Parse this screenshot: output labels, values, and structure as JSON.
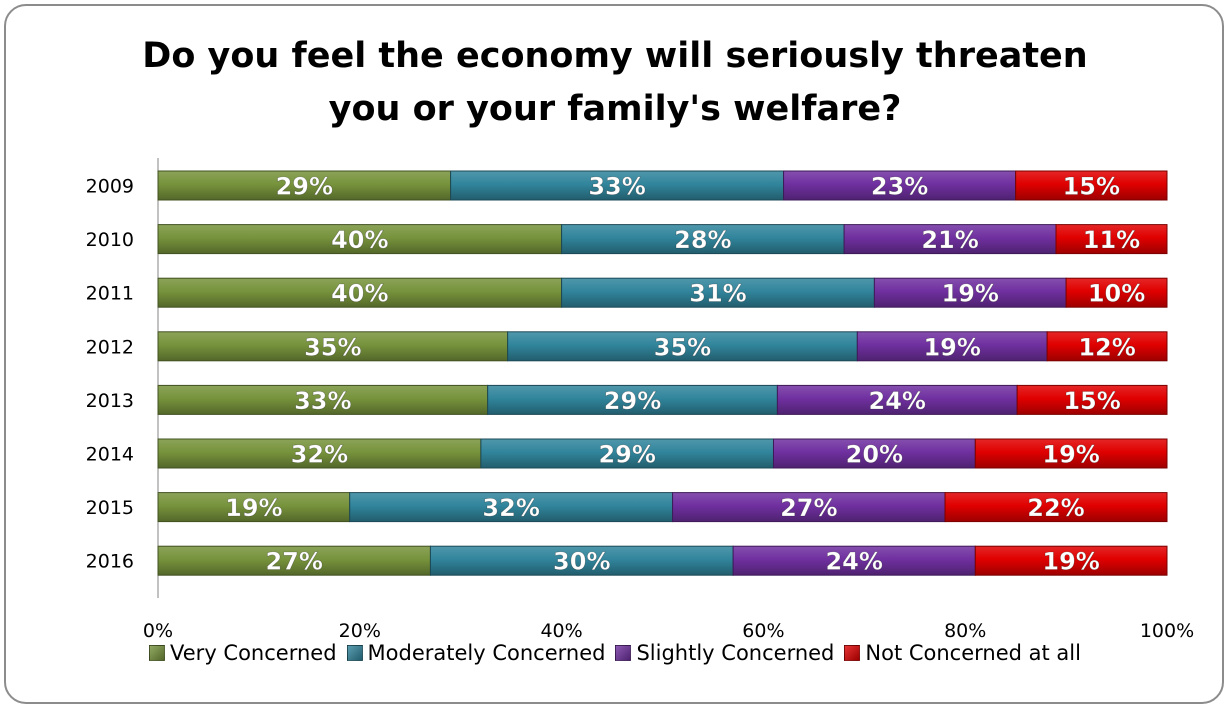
{
  "chart_data": {
    "type": "bar",
    "orientation": "horizontal",
    "stacked": "percent",
    "title": "Do you feel the economy will seriously threaten you or your family's welfare?",
    "title_lines": [
      "Do you feel the economy will seriously threaten",
      "you or your family's welfare?"
    ],
    "categories": [
      "2009",
      "2010",
      "2011",
      "2012",
      "2013",
      "2014",
      "2015",
      "2016"
    ],
    "series": [
      {
        "name": "Very Concerned",
        "color": "#77933c",
        "values": [
          29,
          40,
          40,
          35,
          33,
          32,
          19,
          27
        ],
        "labels": [
          "29%",
          "40%",
          "40%",
          "35%",
          "33%",
          "32%",
          "19%",
          "27%"
        ]
      },
      {
        "name": "Moderately Concerned",
        "color": "#31859c",
        "values": [
          33,
          28,
          31,
          35,
          29,
          29,
          32,
          30
        ],
        "labels": [
          "33%",
          "28%",
          "31%",
          "35%",
          "29%",
          "29%",
          "32%",
          "30%"
        ]
      },
      {
        "name": "Slightly Concerned",
        "color": "#7030a0",
        "values": [
          23,
          21,
          19,
          19,
          24,
          20,
          27,
          24
        ],
        "labels": [
          "23%",
          "21%",
          "19%",
          "19%",
          "24%",
          "20%",
          "27%",
          "24%"
        ]
      },
      {
        "name": "Not Concerned at all",
        "color": "#e00000",
        "values": [
          15,
          11,
          10,
          12,
          15,
          19,
          22,
          19
        ],
        "labels": [
          "15%",
          "11%",
          "10%",
          "12%",
          "15%",
          "19%",
          "22%",
          "19%"
        ]
      }
    ],
    "x_ticks": [
      "0%",
      "20%",
      "40%",
      "60%",
      "80%",
      "100%"
    ],
    "xlim": [
      0,
      100
    ],
    "grid": false,
    "legend_position": "bottom"
  }
}
